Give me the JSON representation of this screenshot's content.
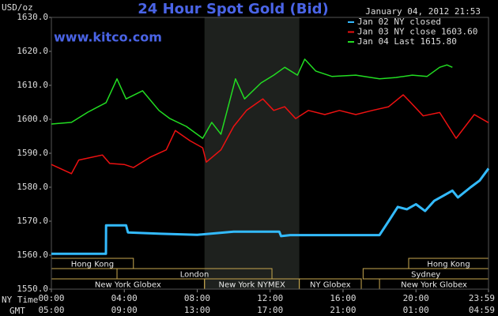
{
  "chart_data": {
    "type": "line",
    "title": "24 Hour Spot Gold (Bid)",
    "website": "www.kitco.com",
    "timestamp": "January 04, 2012 21:53",
    "y_label": "USD/oz",
    "x_label": "NY Time",
    "x2_label": "GMT",
    "ylim": [
      1550,
      1630
    ],
    "yticks": [
      {
        "value": 1550,
        "label": "1550.0"
      },
      {
        "value": 1560,
        "label": "1560.0"
      },
      {
        "value": 1570,
        "label": "1570.0"
      },
      {
        "value": 1580,
        "label": "1580.0"
      },
      {
        "value": 1590,
        "label": "1590.0"
      },
      {
        "value": 1600,
        "label": "1600.0"
      },
      {
        "value": 1610,
        "label": "1610.0"
      },
      {
        "value": 1620,
        "label": "1620.0"
      },
      {
        "value": 1630,
        "label": "1630.0"
      }
    ],
    "xlim": [
      0,
      23.98
    ],
    "xticks": [
      {
        "value": 0,
        "label": "00:00"
      },
      {
        "value": 4,
        "label": "04:00"
      },
      {
        "value": 8,
        "label": "08:00"
      },
      {
        "value": 12,
        "label": "12:00"
      },
      {
        "value": 16,
        "label": "16:00"
      },
      {
        "value": 20,
        "label": "20:00"
      },
      {
        "value": 23.98,
        "label": "23:59"
      }
    ],
    "x2ticks": [
      {
        "value": 0,
        "label": "05:00"
      },
      {
        "value": 4,
        "label": "09:00"
      },
      {
        "value": 8,
        "label": "13:00"
      },
      {
        "value": 12,
        "label": "17:00"
      },
      {
        "value": 16,
        "label": "21:00"
      },
      {
        "value": 20,
        "label": "01:00"
      },
      {
        "value": 23.98,
        "label": "04:59"
      }
    ],
    "shaded_range": [
      8.4,
      13.6
    ],
    "sessions": [
      [
        {
          "label": "Hong Kong",
          "start": 0,
          "end": 4.5
        },
        {
          "label": "Hong Kong",
          "start": 19.6,
          "end": 23.98
        }
      ],
      [
        {
          "label": "London",
          "start": 3.6,
          "end": 12.1
        },
        {
          "label": "Sydney",
          "start": 17.1,
          "end": 23.98
        }
      ],
      [
        {
          "label": "New York Globex",
          "start": 0,
          "end": 8.4
        },
        {
          "label": "New York NYMEX",
          "start": 8.4,
          "end": 13.6
        },
        {
          "label": "NY Globex",
          "start": 13.6,
          "end": 17.0
        },
        {
          "label": "New York Globex",
          "start": 18.0,
          "end": 23.98
        }
      ]
    ],
    "legend": "upper right",
    "series": [
      {
        "name": "Jan 02 NY closed",
        "color": "#33bbff",
        "width": 3,
        "x": [
          0,
          2.99,
          3.0,
          4.1,
          4.2,
          6,
          8,
          10,
          12.5,
          12.6,
          13.1,
          18.0,
          18.5,
          19.0,
          19.5,
          20.0,
          20.5,
          21.0,
          21.5,
          22.0,
          22.3,
          23.0,
          23.5,
          23.98
        ],
        "values": [
          1560.4,
          1560.4,
          1568.8,
          1568.8,
          1566.7,
          1566.3,
          1566.0,
          1566.9,
          1566.9,
          1565.6,
          1565.9,
          1565.9,
          1570,
          1574.2,
          1573.5,
          1575,
          1573,
          1576,
          1577.5,
          1579,
          1577,
          1580,
          1582,
          1585.5
        ]
      },
      {
        "name": "Jan 03 NY close 1603.60",
        "color": "#ee1111",
        "width": 1.5,
        "x": [
          0,
          1.1,
          1.5,
          2.8,
          3.2,
          4.0,
          4.5,
          5.4,
          6.3,
          6.8,
          7.6,
          8.3,
          8.5,
          9.3,
          10.0,
          10.7,
          11.6,
          12.2,
          12.8,
          13.4,
          14.1,
          15.0,
          15.8,
          16.7,
          17.6,
          18.5,
          19.3,
          19.7,
          20.4,
          21.3,
          22.2,
          23.2,
          23.98
        ],
        "values": [
          1586.7,
          1584,
          1588,
          1589.5,
          1587,
          1586.7,
          1585.8,
          1588.8,
          1591,
          1596.7,
          1593.7,
          1591.6,
          1587.4,
          1591,
          1597.9,
          1602.6,
          1606,
          1602.6,
          1603.7,
          1600.2,
          1602.6,
          1601.4,
          1602.6,
          1601.4,
          1602.6,
          1603.7,
          1607.2,
          1605,
          1601,
          1602,
          1594.4,
          1601.4,
          1599
        ]
      },
      {
        "name": "Jan 04 Last 1615.80",
        "color": "#22dd22",
        "width": 1.5,
        "x": [
          0,
          1.1,
          2.0,
          3.0,
          3.6,
          4.1,
          5.0,
          5.9,
          6.5,
          7.4,
          8.3,
          8.8,
          9.3,
          10.1,
          10.6,
          11.5,
          12.2,
          12.8,
          13.5,
          13.9,
          14.5,
          15.4,
          16.7,
          18.0,
          18.9,
          19.8,
          20.6,
          21.3,
          21.7,
          22.0
        ],
        "values": [
          1598.6,
          1599.1,
          1602.1,
          1604.9,
          1611.9,
          1606.0,
          1608.4,
          1602.6,
          1600.2,
          1597.9,
          1594.4,
          1599.1,
          1595.6,
          1611.9,
          1606.0,
          1610.7,
          1613.0,
          1615.3,
          1613.0,
          1617.7,
          1614.2,
          1612.6,
          1613.0,
          1611.9,
          1612.3,
          1613.0,
          1612.6,
          1615.3,
          1616.0,
          1615.3
        ]
      }
    ]
  }
}
